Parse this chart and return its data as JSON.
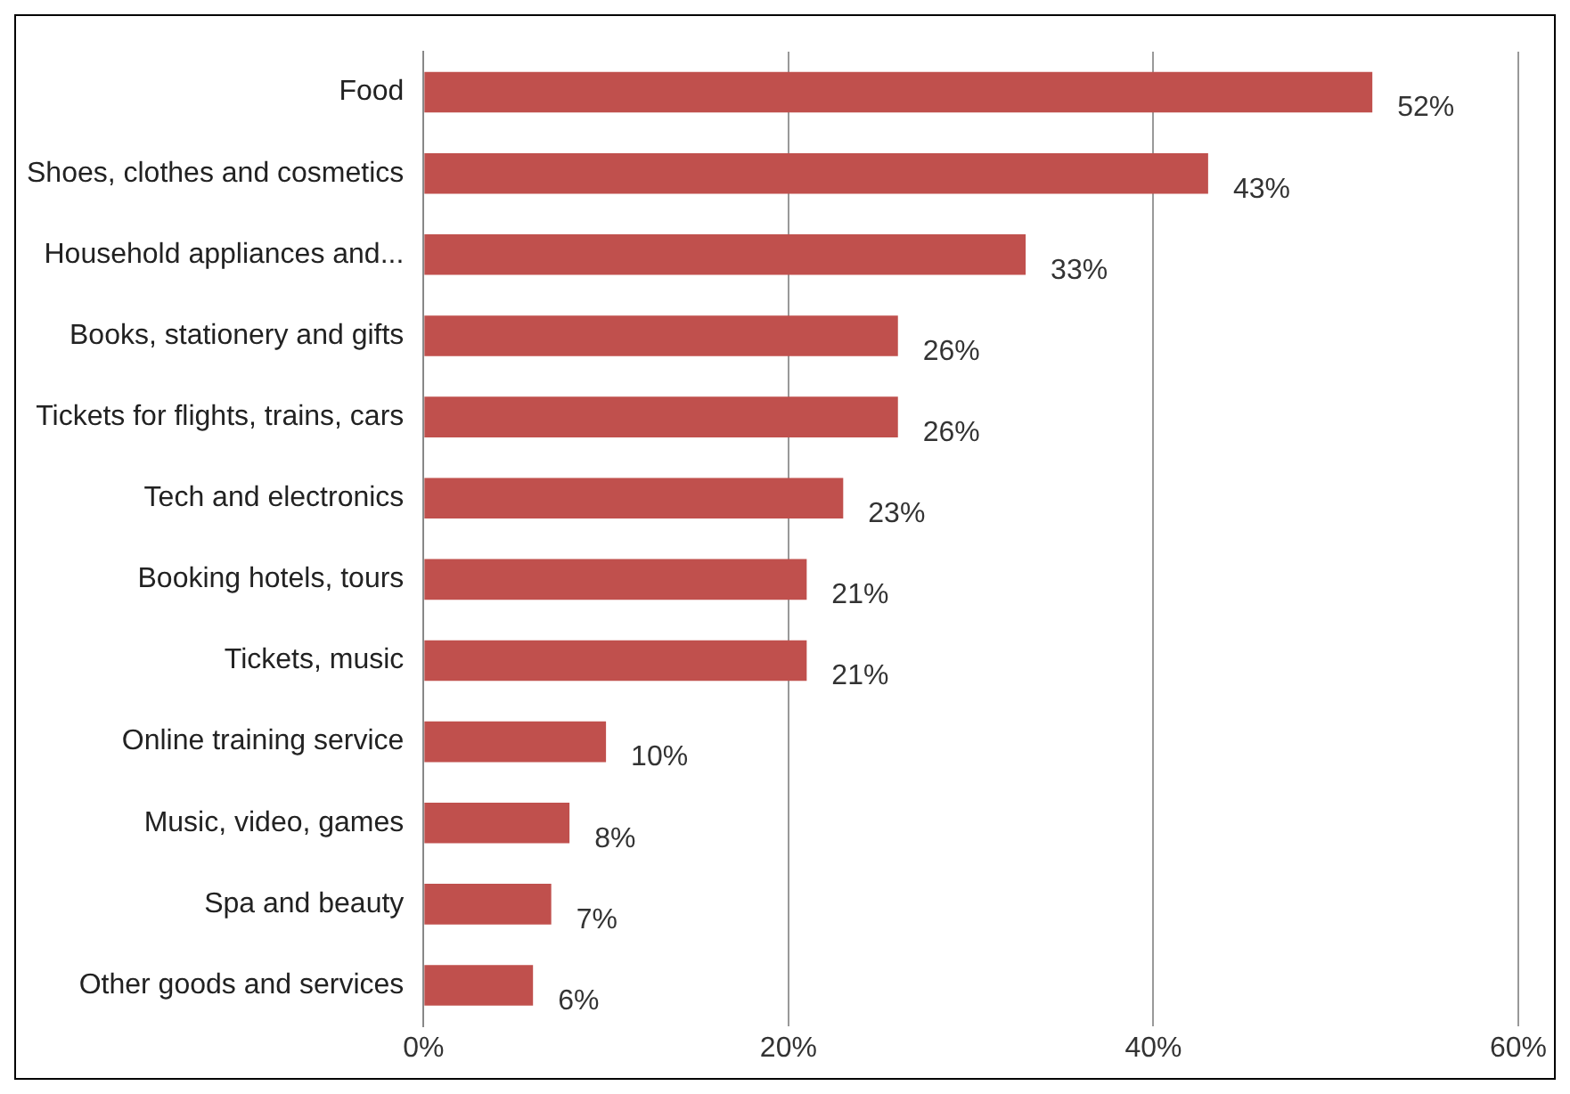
{
  "chart_data": {
    "type": "bar",
    "orientation": "horizontal",
    "categories": [
      "Food",
      "Shoes, clothes and cosmetics",
      "Household appliances and...",
      "Books, stationery and gifts",
      "Tickets for flights, trains, cars",
      "Tech and electronics",
      "Booking hotels, tours",
      "Tickets, music",
      "Online training service",
      "Music, video, games",
      "Spa and beauty",
      "Other goods and services"
    ],
    "values": [
      52,
      43,
      33,
      26,
      26,
      23,
      21,
      21,
      10,
      8,
      7,
      6
    ],
    "value_labels": [
      "52%",
      "43%",
      "33%",
      "26%",
      "26%",
      "23%",
      "21%",
      "21%",
      "10%",
      "8%",
      "7%",
      "6%"
    ],
    "color": "#c0504d",
    "xlim": [
      0,
      60
    ],
    "xticks": [
      {
        "value": 0,
        "label": "0%"
      },
      {
        "value": 20,
        "label": "20%"
      },
      {
        "value": 40,
        "label": "40%"
      },
      {
        "value": 60,
        "label": "60%"
      }
    ],
    "grid": "x",
    "legend": false
  }
}
